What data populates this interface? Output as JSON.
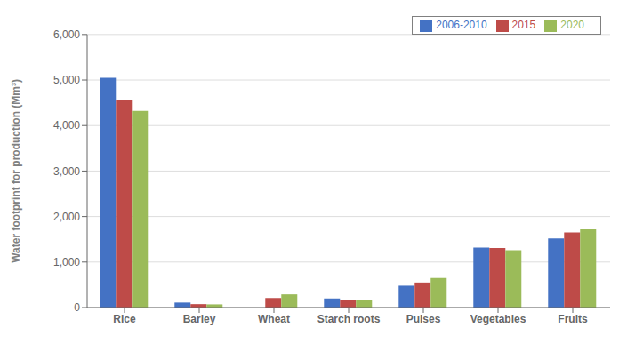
{
  "chart_data": {
    "type": "bar",
    "categories": [
      "Rice",
      "Barley",
      "Wheat",
      "Starch roots",
      "Pulses",
      "Vegetables",
      "Fruits"
    ],
    "series": [
      {
        "name": "2006-2010",
        "color": "#4472C4",
        "values": [
          5050,
          110,
          0,
          200,
          480,
          1320,
          1520
        ]
      },
      {
        "name": "2015",
        "color": "#BE4B48",
        "values": [
          4570,
          75,
          210,
          165,
          550,
          1310,
          1650
        ]
      },
      {
        "name": "2020",
        "color": "#9BBB59",
        "values": [
          4320,
          70,
          290,
          165,
          650,
          1260,
          1720
        ]
      }
    ],
    "ylabel": "Water footprint for production (Mm³)",
    "ylim": [
      0,
      6000
    ],
    "yticks": [
      0,
      {
        "value": 1000,
        "label": "1,000"
      },
      {
        "value": 2000,
        "label": "2,000"
      },
      {
        "value": 3000,
        "label": "3,000"
      },
      {
        "value": 4000,
        "label": "4,000"
      },
      {
        "value": 5000,
        "label": "5,000"
      },
      {
        "value": 6000,
        "label": "6,000"
      }
    ],
    "grid": true,
    "legend": "upper right"
  }
}
